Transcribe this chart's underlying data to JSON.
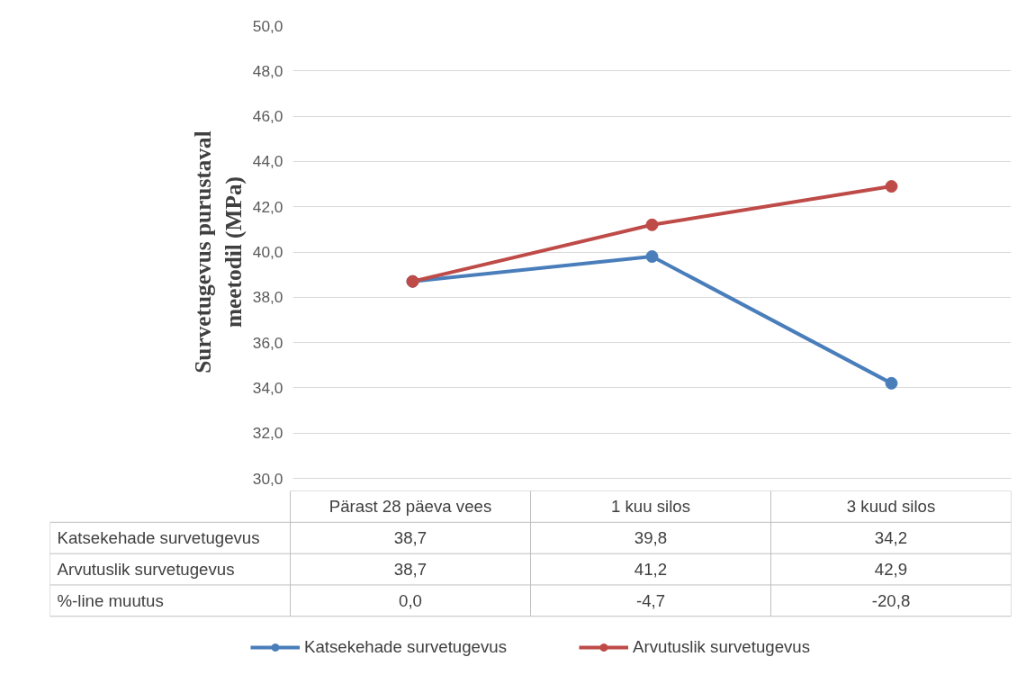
{
  "chart_data": {
    "type": "line",
    "ylabel": "Survetugevus purustaval meetodil (MPa)",
    "categories": [
      "Pärast 28 päeva vees",
      "1 kuu silos",
      "3 kuud silos"
    ],
    "series": [
      {
        "name": "Katsekehade survetugevus",
        "color": "#4a7ebb",
        "values": [
          38.7,
          39.8,
          34.2
        ],
        "value_labels": [
          "38,7",
          "39,8",
          "34,2"
        ]
      },
      {
        "name": "Arvutuslik survetugevus",
        "color": "#be4b48",
        "values": [
          38.7,
          41.2,
          42.9
        ],
        "value_labels": [
          "38,7",
          "41,2",
          "42,9"
        ]
      }
    ],
    "ylim": [
      30,
      50
    ],
    "yticks": [
      {
        "value": 30,
        "label": "30,0"
      },
      {
        "value": 32,
        "label": "32,0"
      },
      {
        "value": 34,
        "label": "34,0"
      },
      {
        "value": 36,
        "label": "36,0"
      },
      {
        "value": 38,
        "label": "38,0"
      },
      {
        "value": 40,
        "label": "40,0"
      },
      {
        "value": 42,
        "label": "42,0"
      },
      {
        "value": 44,
        "label": "44,0"
      },
      {
        "value": 46,
        "label": "46,0"
      },
      {
        "value": 48,
        "label": "48,0"
      },
      {
        "value": 50,
        "label": "50,0"
      }
    ],
    "grid": "y",
    "legend": "bottom",
    "marker": "circle",
    "line_style": "solid",
    "annotations": [
      "%-line muutus",
      "0,0",
      "-4,7",
      "-20,8"
    ]
  }
}
